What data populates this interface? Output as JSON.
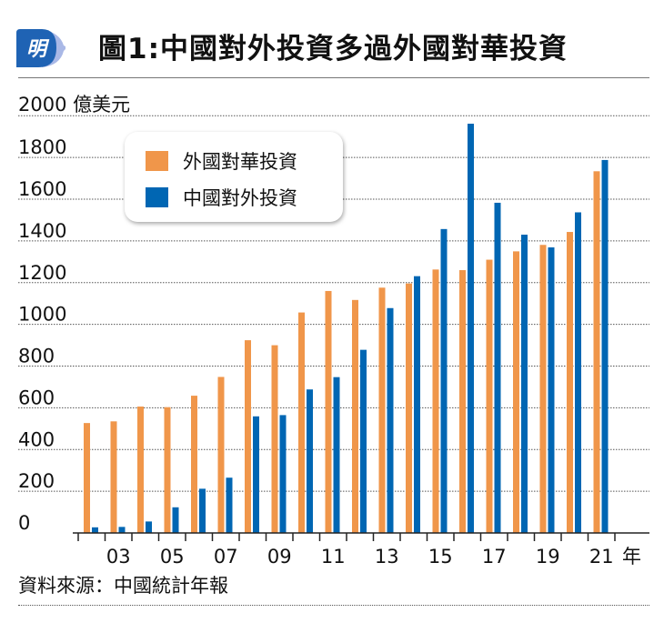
{
  "header": {
    "title": "圖1:中國對外投資多過外國對華投資",
    "logo_text": "明"
  },
  "footer": {
    "source": "資料來源：中國統計年報"
  },
  "chart_data": {
    "type": "bar",
    "title": "圖1:中國對外投資多過外國對華投資",
    "ylabel": "億美元",
    "xlabel": "年",
    "ylim": [
      0,
      2000
    ],
    "yticks": [
      "0",
      "200",
      "400",
      "600",
      "800",
      "1000",
      "1200",
      "1400",
      "1600",
      "1800",
      "2000"
    ],
    "grid": true,
    "legend_position": "top-left",
    "categories": [
      "02",
      "03",
      "04",
      "05",
      "06",
      "07",
      "08",
      "09",
      "10",
      "11",
      "12",
      "13",
      "14",
      "15",
      "16",
      "17",
      "18",
      "19",
      "20",
      "21"
    ],
    "xtick_labels": [
      "03",
      "05",
      "07",
      "09",
      "11",
      "13",
      "15",
      "17",
      "19",
      "21"
    ],
    "series": [
      {
        "name": "外國對華投資",
        "color": "#F0964A",
        "values": [
          527,
          535,
          606,
          603,
          658,
          748,
          924,
          900,
          1057,
          1160,
          1117,
          1176,
          1196,
          1263,
          1260,
          1310,
          1350,
          1381,
          1443,
          1734
        ]
      },
      {
        "name": "中國對外投資",
        "color": "#0066B3",
        "values": [
          27,
          29,
          55,
          123,
          212,
          265,
          559,
          565,
          688,
          747,
          878,
          1078,
          1231,
          1457,
          1962,
          1583,
          1430,
          1369,
          1537,
          1788
        ]
      }
    ]
  }
}
